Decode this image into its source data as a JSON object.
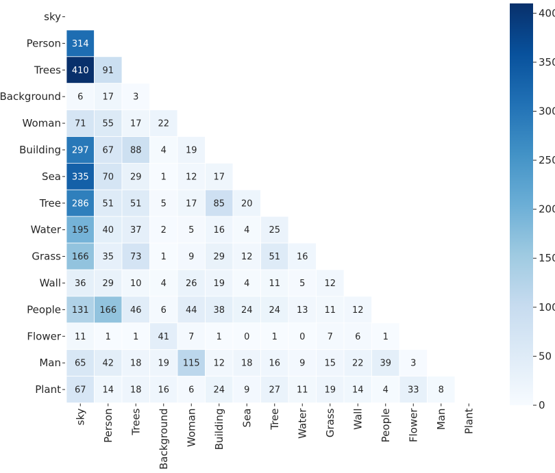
{
  "chart_data": {
    "type": "heatmap",
    "title": "",
    "xlabel": "",
    "ylabel": "",
    "row_labels": [
      "sky",
      "Person",
      "Trees",
      "Background",
      "Woman",
      "Building",
      "Sea",
      "Tree",
      "Water",
      "Grass",
      "Wall",
      "People",
      "Flower",
      "Man",
      "Plant"
    ],
    "col_labels": [
      "sky",
      "Person",
      "Trees",
      "Background",
      "Woman",
      "Building",
      "Sea",
      "Tree",
      "Water",
      "Grass",
      "Wall",
      "People",
      "Flower",
      "Man",
      "Plant"
    ],
    "masked": "upper triangle including diagonal",
    "values": [
      [],
      [
        314
      ],
      [
        410,
        91
      ],
      [
        6,
        17,
        3
      ],
      [
        71,
        55,
        17,
        22
      ],
      [
        297,
        67,
        88,
        4,
        19
      ],
      [
        335,
        70,
        29,
        1,
        12,
        17
      ],
      [
        286,
        51,
        51,
        5,
        17,
        85,
        20
      ],
      [
        195,
        40,
        37,
        2,
        5,
        16,
        4,
        25
      ],
      [
        166,
        35,
        73,
        1,
        9,
        29,
        12,
        51,
        16
      ],
      [
        36,
        29,
        10,
        4,
        26,
        19,
        4,
        11,
        5,
        12
      ],
      [
        131,
        166,
        46,
        6,
        44,
        38,
        24,
        24,
        13,
        11,
        12
      ],
      [
        11,
        1,
        1,
        41,
        7,
        1,
        0,
        1,
        0,
        7,
        6,
        1
      ],
      [
        65,
        42,
        18,
        19,
        115,
        12,
        18,
        16,
        9,
        15,
        22,
        39,
        3
      ],
      [
        67,
        14,
        18,
        16,
        6,
        24,
        9,
        27,
        11,
        19,
        14,
        4,
        33,
        8
      ]
    ],
    "colormap": "Blues",
    "vmin": 0,
    "vmax": 410,
    "colorbar_ticks": [
      0,
      50,
      100,
      150,
      200,
      250,
      300,
      350,
      400
    ],
    "cell_border_color": "#ffffff"
  }
}
